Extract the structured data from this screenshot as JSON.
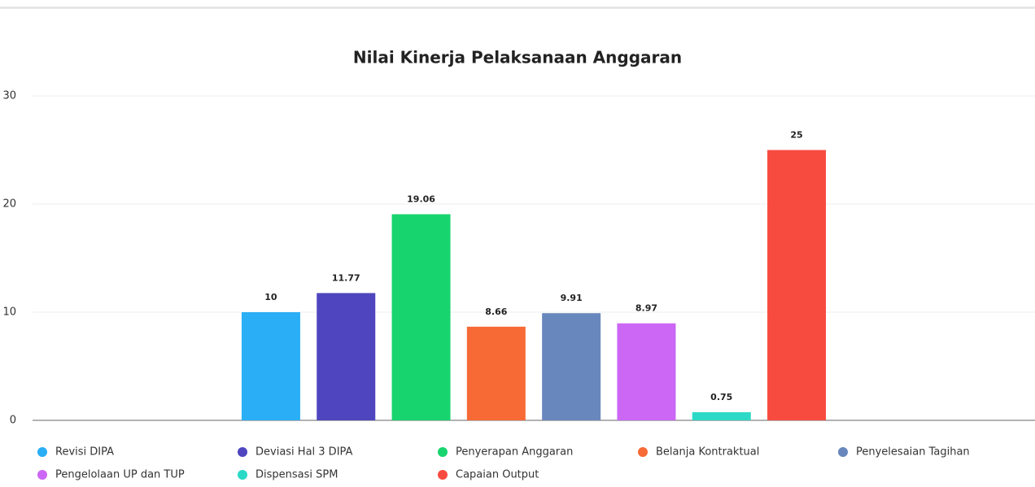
{
  "chart_data": {
    "type": "bar",
    "title": "Nilai Kinerja Pelaksanaan Anggaran",
    "categories": [
      null
    ],
    "series": [
      {
        "name": "Revisi DIPA",
        "color": "#2aaef5",
        "values": [
          10
        ]
      },
      {
        "name": "Deviasi Hal 3 DIPA",
        "color": "#4f46bf",
        "values": [
          11.77
        ]
      },
      {
        "name": "Penyerapan Anggaran",
        "color": "#18d46e",
        "values": [
          19.06
        ]
      },
      {
        "name": "Belanja Kontraktual",
        "color": "#f76a35",
        "values": [
          8.66
        ]
      },
      {
        "name": "Penyelesaian Tagihan",
        "color": "#6887bd",
        "values": [
          9.91
        ]
      },
      {
        "name": "Pengelolaan UP dan TUP",
        "color": "#cc66f5",
        "values": [
          8.97
        ]
      },
      {
        "name": "Dispensasi SPM",
        "color": "#2bd9c6",
        "values": [
          0.75
        ]
      },
      {
        "name": "Capaian Output",
        "color": "#f74b40",
        "values": [
          25
        ]
      }
    ],
    "ylim": [
      0,
      30
    ],
    "yticks": [
      0,
      10,
      20,
      30
    ],
    "grid": true,
    "legend": "bottom"
  }
}
